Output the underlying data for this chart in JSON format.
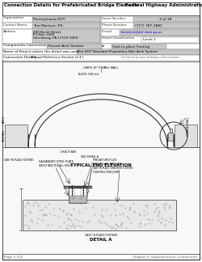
{
  "title_left": "Connection Details for Prefabricated Bridge Elements",
  "title_right": "Federal Highway Administration",
  "header_bg": "#d0d0d0",
  "field_bg": "#c8c8c8",
  "white_bg": "#ffffff",
  "page_bg": "#ffffff",
  "border_color": "#555555",
  "text_color": "#000000",
  "org_label": "Organization",
  "org_value": "Pennsylvania DOT",
  "contact_label": "Contact Name",
  "contact_value": "Tom Macioce, P.E.",
  "address_label": "Address",
  "address_line1": "400 North Street",
  "address_line2": "PO Box 3060",
  "address_line3": "Harrisburg, PA 17120-3060",
  "serial_label": "Serial Number",
  "serial_value": "3 of 18",
  "phone_label": "Phone Number",
  "phone_value": "(717) 787-2881",
  "email_label": "E-mail",
  "email_value": "tmacioce@dot.state.pa.us",
  "detail_class_label": "Detail Classification",
  "detail_class_value": "Level 1",
  "components_label": "Components Connected:",
  "component1": "Precast Arch Section",
  "component2": "Cast-in-place Footing",
  "to_text": "to",
  "name_label": "Name of Project where the detail was used",
  "name_value": "Pen DOT Standard Proprietary Bike Arch System",
  "connection_label": "Connection Details:",
  "connection_value": "Manual Reference Section (2.4.)",
  "click_text": "Click here to see more information on this connection",
  "diagram_title1": "TYPICAL END ELEVATION",
  "diagram_title2": "DETAIL A",
  "footer_left": "Page 3-215",
  "footer_right": "Chapter 3: Superstructure Connections"
}
